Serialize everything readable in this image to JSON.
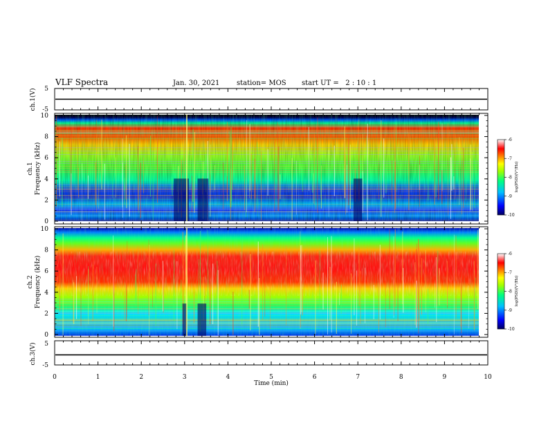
{
  "header": {
    "title": "VLF Spectra",
    "date": "Jan. 30, 2021",
    "station": "station= MOS",
    "start": "start UT =   2 : 10 : 1"
  },
  "chart_data": [
    {
      "type": "line",
      "panel": "ch1-waveform",
      "ylabel": "ch.1(V)",
      "yticks": [
        "5",
        "-5"
      ],
      "ylim": [
        -5,
        5
      ],
      "series": [
        {
          "values": [
            0,
            0
          ]
        }
      ],
      "xlim": [
        0,
        10
      ]
    },
    {
      "type": "heatmap",
      "panel": "ch1-spectrogram",
      "ylabel": "ch.1\nFrequency (kHz)",
      "ylabel_ch": "ch.1",
      "ylabel_freq": "Frequency (kHz)",
      "yticks": [
        "0",
        "2",
        "4",
        "6",
        "8",
        "10"
      ],
      "ylim": [
        0,
        10
      ],
      "xlim": [
        0,
        9.85
      ],
      "colorbar": {
        "label": "log(PSD)(V²/Hz)",
        "ticks": [
          "-6",
          "-7",
          "-8",
          "-9",
          "-10"
        ],
        "range": [
          -10,
          -6
        ]
      },
      "dark_intervals_min": [
        [
          2.75,
          3.1
        ],
        [
          3.3,
          3.55
        ],
        [
          6.9,
          7.1
        ]
      ]
    },
    {
      "type": "heatmap",
      "panel": "ch2-spectrogram",
      "ylabel": "ch.2\nFrequency (kHz)",
      "ylabel_ch": "ch.2",
      "ylabel_freq": "Frequency (kHz)",
      "yticks": [
        "0",
        "2",
        "4",
        "6",
        "8",
        "10"
      ],
      "ylim": [
        0,
        10
      ],
      "xlim": [
        0,
        9.85
      ],
      "colorbar": {
        "label": "log(PSD)(V²/Hz)",
        "ticks": [
          "-6",
          "-7",
          "-8",
          "-9",
          "-10"
        ],
        "range": [
          -10,
          -6
        ]
      },
      "dark_intervals_min": [
        [
          2.95,
          3.05
        ],
        [
          3.3,
          3.5
        ]
      ]
    },
    {
      "type": "line",
      "panel": "ch3-waveform",
      "ylabel": "ch.3(V)",
      "yticks": [
        "5",
        "-5"
      ],
      "ylim": [
        -5,
        5
      ],
      "series": [
        {
          "values": [
            -1,
            -1
          ]
        }
      ],
      "xlim": [
        0,
        10
      ]
    }
  ],
  "xaxis": {
    "label": "Time (min)",
    "ticks": [
      "0",
      "1",
      "2",
      "3",
      "4",
      "5",
      "6",
      "7",
      "8",
      "9",
      "10"
    ],
    "range": [
      0,
      10
    ]
  },
  "colors": {
    "colormap": [
      "#000080",
      "#0000ff",
      "#00c0ff",
      "#00ff80",
      "#c0ff00",
      "#ffff00",
      "#ff8000",
      "#ff0000",
      "#ffffff"
    ]
  }
}
